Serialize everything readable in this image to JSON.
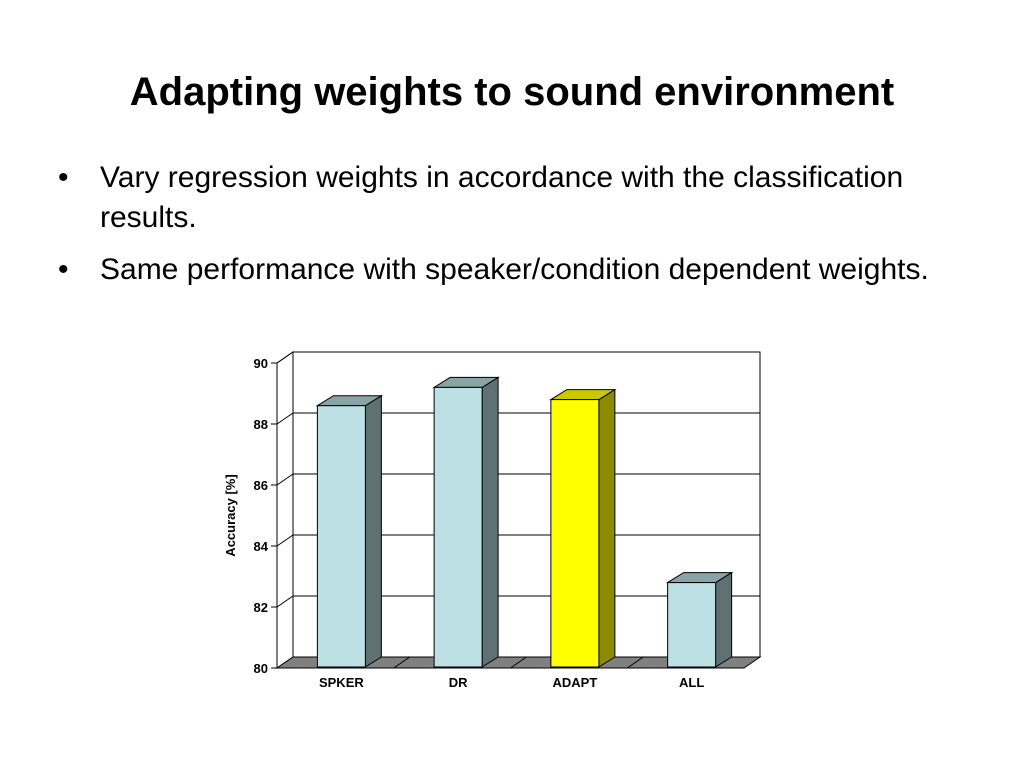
{
  "slide": {
    "title": "Adapting weights to sound environment",
    "bullets": [
      "Vary regression weights in accordance with the classification results.",
      "Same performance with speaker/condition dependent weights."
    ],
    "bullet_symbol": "•"
  },
  "chart_data": {
    "type": "bar",
    "categories": [
      "SPKER",
      "DR",
      "ADAPT",
      "ALL"
    ],
    "values": [
      88.6,
      89.2,
      88.8,
      82.8
    ],
    "title": "",
    "xlabel": "",
    "ylabel": "Accuracy [%]",
    "ylim": [
      80,
      90
    ],
    "yticks": [
      80,
      82,
      84,
      86,
      88,
      90
    ],
    "grid": true,
    "legend": "none",
    "style": "3d",
    "colors": {
      "bar_default_front": "#bde0e4",
      "bar_default_top": "#8aa3a6",
      "bar_default_side": "#5f7172",
      "bar_highlight_front": "#ffff00",
      "bar_highlight_top": "#c9c900",
      "bar_highlight_side": "#8c8c00",
      "floor": "#808080",
      "gridline": "#000000"
    },
    "highlight_category": "ADAPT"
  }
}
